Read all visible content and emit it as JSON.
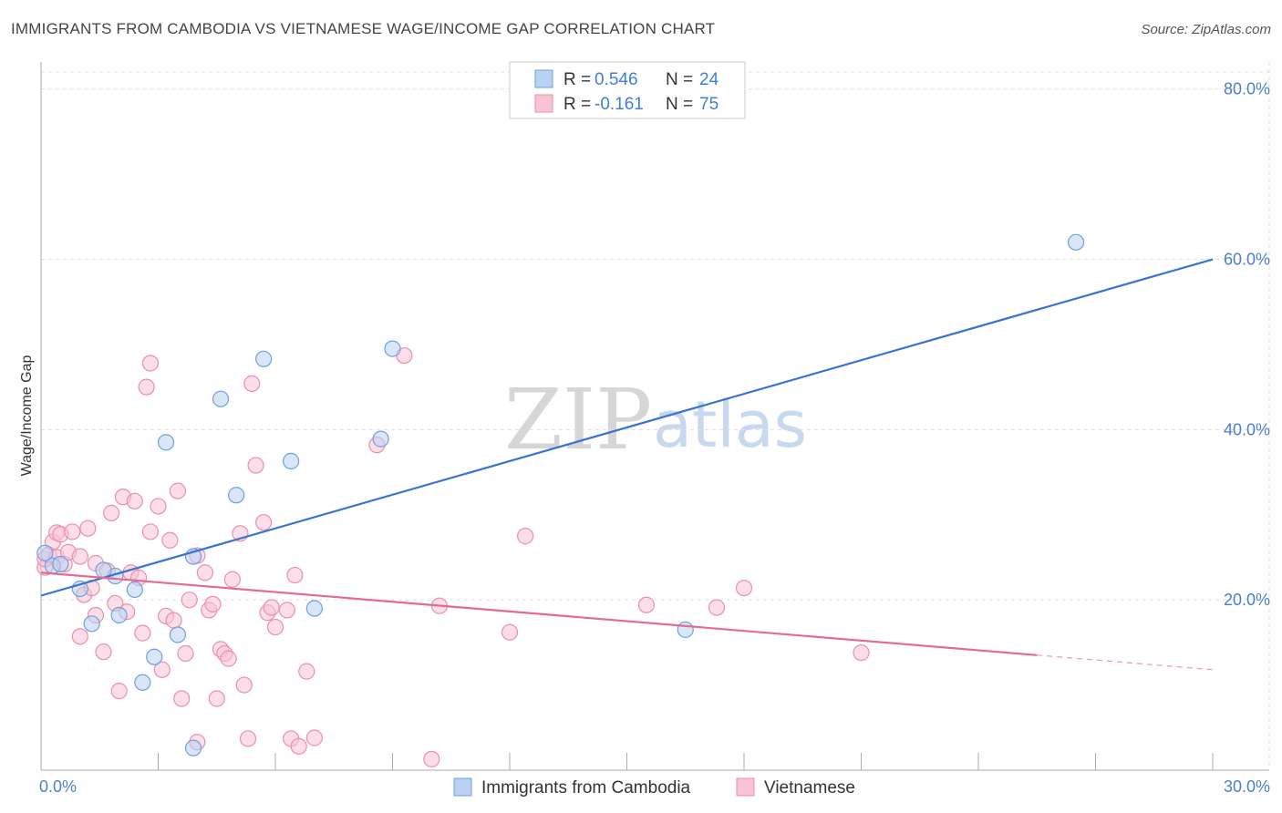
{
  "header": {
    "title": "IMMIGRANTS FROM CAMBODIA VS VIETNAMESE WAGE/INCOME GAP CORRELATION CHART",
    "source": "Source: ZipAtlas.com"
  },
  "watermark": {
    "zip": "ZIP",
    "atlas": "atlas"
  },
  "colors": {
    "cambodia_fill": "#b9d1f3",
    "cambodia_stroke": "#6f9fdf",
    "cambodia_line": "#3775d0",
    "vietnamese_fill": "#f8c3d3",
    "vietnamese_stroke": "#eb8fad",
    "vietnamese_line": "#e46a95",
    "grid": "#dddddd",
    "tick_text": "#4a7fcc"
  },
  "legend": {
    "rows": [
      {
        "r_label": "R = ",
        "r_value": "0.546",
        "n_label": "N = ",
        "n_value": "24"
      },
      {
        "r_label": "R = ",
        "r_value": "-0.161",
        "n_label": "N = ",
        "n_value": "75"
      }
    ]
  },
  "chart_data": {
    "type": "scatter",
    "title": "IMMIGRANTS FROM CAMBODIA VS VIETNAMESE WAGE/INCOME GAP CORRELATION CHART",
    "xlabel": "",
    "ylabel": "Wage/Income Gap",
    "xlim": [
      0,
      30
    ],
    "ylim": [
      0,
      82
    ],
    "x_ticks": [
      {
        "value": 0,
        "label": "0.0%"
      },
      {
        "value": 30,
        "label": "30.0%"
      }
    ],
    "x_minor_ticks": [
      3,
      6,
      9,
      12,
      15,
      18,
      21,
      24,
      27
    ],
    "y_ticks": [
      {
        "value": 20,
        "label": "20.0%"
      },
      {
        "value": 40,
        "label": "40.0%"
      },
      {
        "value": 60,
        "label": "60.0%"
      },
      {
        "value": 80,
        "label": "80.0%"
      }
    ],
    "grid": true,
    "legend_position": "top-center",
    "series": [
      {
        "name": "Immigrants from Cambodia",
        "color_key": "cambodia",
        "r": 0.546,
        "n": 24,
        "trend": {
          "x": [
            0,
            30
          ],
          "y": [
            20.5,
            60.0
          ],
          "dash_from_x": null
        },
        "points": [
          [
            0.1,
            25.5
          ],
          [
            0.3,
            24.0
          ],
          [
            0.5,
            24.2
          ],
          [
            1.0,
            21.3
          ],
          [
            1.3,
            17.2
          ],
          [
            1.9,
            22.8
          ],
          [
            1.6,
            23.5
          ],
          [
            2.0,
            18.2
          ],
          [
            2.4,
            21.2
          ],
          [
            2.6,
            10.3
          ],
          [
            2.9,
            13.3
          ],
          [
            3.2,
            38.5
          ],
          [
            3.5,
            15.9
          ],
          [
            3.9,
            25.1
          ],
          [
            3.9,
            2.6
          ],
          [
            4.6,
            43.6
          ],
          [
            5.0,
            32.3
          ],
          [
            5.7,
            48.3
          ],
          [
            6.4,
            36.3
          ],
          [
            7.0,
            19.0
          ],
          [
            8.7,
            38.9
          ],
          [
            9.0,
            49.5
          ],
          [
            16.5,
            16.5
          ],
          [
            26.5,
            62.0
          ]
        ]
      },
      {
        "name": "Vietnamese",
        "color_key": "vietnamese",
        "r": -0.161,
        "n": 75,
        "trend": {
          "x": [
            0,
            30
          ],
          "y": [
            23.2,
            11.8
          ],
          "dash_from_x": 25.5
        },
        "points": [
          [
            0.1,
            23.8
          ],
          [
            0.1,
            24.8
          ],
          [
            0.2,
            25.3
          ],
          [
            0.3,
            26.8
          ],
          [
            0.4,
            27.9
          ],
          [
            0.4,
            25.0
          ],
          [
            0.5,
            27.7
          ],
          [
            0.6,
            24.2
          ],
          [
            0.7,
            25.6
          ],
          [
            0.8,
            28.0
          ],
          [
            1.0,
            25.1
          ],
          [
            1.0,
            15.7
          ],
          [
            1.1,
            20.6
          ],
          [
            1.2,
            28.4
          ],
          [
            1.3,
            21.4
          ],
          [
            1.4,
            18.2
          ],
          [
            1.4,
            24.3
          ],
          [
            1.6,
            13.9
          ],
          [
            1.7,
            23.4
          ],
          [
            1.8,
            30.2
          ],
          [
            1.9,
            19.6
          ],
          [
            2.0,
            9.3
          ],
          [
            2.1,
            32.1
          ],
          [
            2.2,
            18.6
          ],
          [
            2.3,
            23.2
          ],
          [
            2.4,
            31.6
          ],
          [
            2.5,
            22.6
          ],
          [
            2.6,
            16.1
          ],
          [
            2.7,
            45.0
          ],
          [
            2.8,
            28.0
          ],
          [
            2.8,
            47.8
          ],
          [
            3.0,
            31.0
          ],
          [
            3.1,
            11.8
          ],
          [
            3.2,
            18.1
          ],
          [
            3.3,
            27.0
          ],
          [
            3.4,
            17.6
          ],
          [
            3.5,
            32.8
          ],
          [
            3.6,
            8.4
          ],
          [
            3.7,
            13.7
          ],
          [
            3.8,
            20.0
          ],
          [
            4.0,
            25.2
          ],
          [
            4.0,
            3.3
          ],
          [
            4.2,
            23.2
          ],
          [
            4.3,
            18.8
          ],
          [
            4.4,
            19.5
          ],
          [
            4.5,
            8.4
          ],
          [
            4.6,
            14.2
          ],
          [
            4.7,
            13.7
          ],
          [
            4.8,
            13.1
          ],
          [
            4.9,
            22.4
          ],
          [
            5.1,
            27.8
          ],
          [
            5.2,
            10.0
          ],
          [
            5.3,
            3.7
          ],
          [
            5.4,
            45.4
          ],
          [
            5.5,
            35.8
          ],
          [
            5.7,
            29.1
          ],
          [
            5.8,
            18.5
          ],
          [
            5.9,
            19.1
          ],
          [
            6.0,
            16.8
          ],
          [
            6.3,
            18.8
          ],
          [
            6.4,
            3.7
          ],
          [
            6.5,
            22.9
          ],
          [
            6.6,
            2.8
          ],
          [
            6.8,
            11.6
          ],
          [
            7.0,
            3.8
          ],
          [
            8.6,
            38.2
          ],
          [
            9.3,
            48.7
          ],
          [
            10.0,
            1.3
          ],
          [
            10.2,
            19.3
          ],
          [
            12.0,
            16.2
          ],
          [
            12.4,
            27.5
          ],
          [
            15.5,
            19.4
          ],
          [
            17.3,
            19.1
          ],
          [
            18.0,
            21.4
          ],
          [
            21.0,
            13.8
          ]
        ]
      }
    ]
  },
  "bottom_legend": [
    {
      "label": "Immigrants from Cambodia",
      "color_key": "cambodia"
    },
    {
      "label": "Vietnamese",
      "color_key": "vietnamese"
    }
  ]
}
